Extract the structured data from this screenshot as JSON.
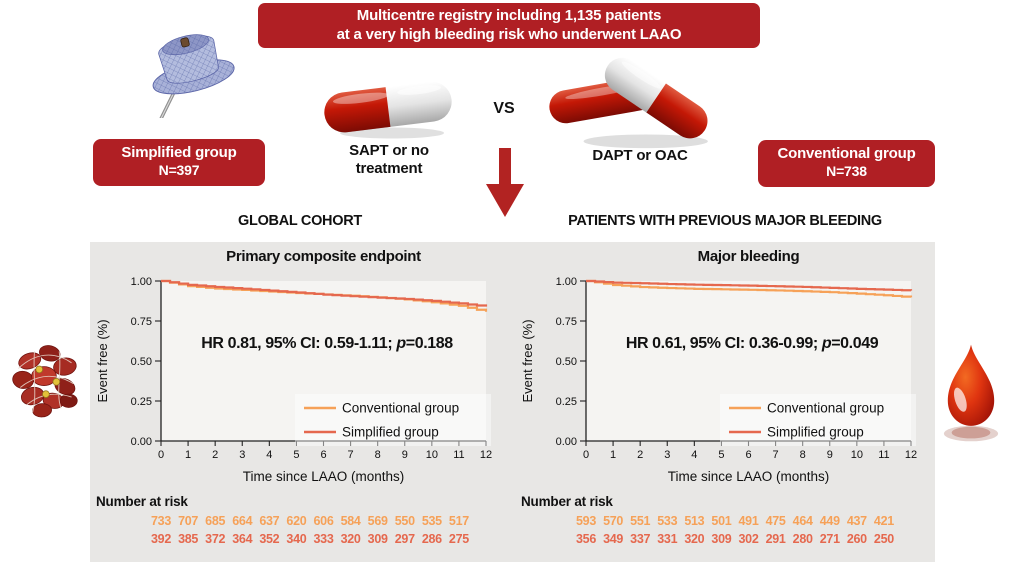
{
  "top_banner": {
    "line1": "Multicentre registry including 1,135 patients",
    "line2": "at a very high bleeding risk who underwent LAAO"
  },
  "groups": {
    "simplified": {
      "label": "Simplified group",
      "n": "N=397"
    },
    "conventional": {
      "label": "Conventional group",
      "n": "N=738"
    }
  },
  "treatments": {
    "left_line1": "SAPT or no",
    "left_line2": "treatment",
    "vs": "VS",
    "right": "DAPT or OAC"
  },
  "icons": {
    "device": "laao-device-icon",
    "single_pill": "capsule-icon",
    "double_pill": "two-capsules-icon",
    "arrow": "down-arrow-icon",
    "clot": "blood-clot-icon",
    "drop": "blood-drop-icon"
  },
  "colors": {
    "banner_red": "#B01F24",
    "arrow_red": "#B22322",
    "conventional": "#F6A158",
    "simplified": "#E5684E",
    "panel_bg": "#E8E7E5",
    "plot_bg": "#F5F4F2",
    "axis": "#222222"
  },
  "chart_data": [
    {
      "type": "line",
      "section_header": "GLOBAL COHORT",
      "title": "Primary composite endpoint",
      "hr_annotation": {
        "prefix": "HR 0.81, 95% CI: 0.59-1.11; ",
        "p_label": "p",
        "p_value": "=0.188"
      },
      "ylabel": "Event free (%)",
      "xlabel": "Time since LAAO (months)",
      "ylim": [
        0,
        1
      ],
      "y_ticks": [
        "0.00",
        "0.25",
        "0.50",
        "0.75",
        "1.00"
      ],
      "x": [
        0,
        1,
        2,
        3,
        4,
        5,
        6,
        7,
        8,
        9,
        10,
        11,
        12
      ],
      "legend_position": "lower right",
      "series": [
        {
          "name": "Conventional group",
          "color": "#F6A158",
          "values": [
            1.0,
            0.968,
            0.953,
            0.944,
            0.934,
            0.925,
            0.916,
            0.908,
            0.898,
            0.885,
            0.867,
            0.845,
            0.808
          ]
        },
        {
          "name": "Simplified group",
          "color": "#E5684E",
          "values": [
            1.0,
            0.976,
            0.963,
            0.952,
            0.94,
            0.928,
            0.915,
            0.905,
            0.896,
            0.888,
            0.876,
            0.86,
            0.84
          ]
        }
      ],
      "number_at_risk": {
        "label": "Number at risk",
        "x": [
          0,
          1,
          2,
          3,
          4,
          5,
          6,
          7,
          8,
          9,
          10,
          11
        ],
        "rows": [
          {
            "name": "Conventional group",
            "color": "#F6A158",
            "values": [
              733,
              707,
              685,
              664,
              637,
              620,
              606,
              584,
              569,
              550,
              535,
              517
            ]
          },
          {
            "name": "Simplified group",
            "color": "#E5684E",
            "values": [
              392,
              385,
              372,
              364,
              352,
              340,
              333,
              320,
              309,
              297,
              286,
              275
            ]
          }
        ]
      }
    },
    {
      "type": "line",
      "section_header": "PATIENTS WITH PREVIOUS MAJOR BLEEDING",
      "title": "Major bleeding",
      "hr_annotation": {
        "prefix": "HR 0.61, 95% CI: 0.36-0.99; ",
        "p_label": "p",
        "p_value": "=0.049"
      },
      "ylabel": "Event free (%)",
      "xlabel": "Time since LAAO (months)",
      "ylim": [
        0,
        1
      ],
      "y_ticks": [
        "0.00",
        "0.25",
        "0.50",
        "0.75",
        "1.00"
      ],
      "x": [
        0,
        1,
        2,
        3,
        4,
        5,
        6,
        7,
        8,
        9,
        10,
        11,
        12
      ],
      "legend_position": "lower right",
      "series": [
        {
          "name": "Conventional group",
          "color": "#F6A158",
          "values": [
            1.0,
            0.975,
            0.962,
            0.956,
            0.951,
            0.948,
            0.945,
            0.941,
            0.936,
            0.93,
            0.921,
            0.911,
            0.898
          ]
        },
        {
          "name": "Simplified group",
          "color": "#E5684E",
          "values": [
            1.0,
            0.99,
            0.986,
            0.981,
            0.977,
            0.974,
            0.971,
            0.967,
            0.963,
            0.957,
            0.951,
            0.946,
            0.94
          ]
        }
      ],
      "number_at_risk": {
        "label": "Number at risk",
        "x": [
          0,
          1,
          2,
          3,
          4,
          5,
          6,
          7,
          8,
          9,
          10,
          11
        ],
        "rows": [
          {
            "name": "Conventional group",
            "color": "#F6A158",
            "values": [
              593,
              570,
              551,
              533,
              513,
              501,
              491,
              475,
              464,
              449,
              437,
              421
            ]
          },
          {
            "name": "Simplified group",
            "color": "#E5684E",
            "values": [
              356,
              349,
              337,
              331,
              320,
              309,
              302,
              291,
              280,
              271,
              260,
              250
            ]
          }
        ]
      }
    }
  ]
}
